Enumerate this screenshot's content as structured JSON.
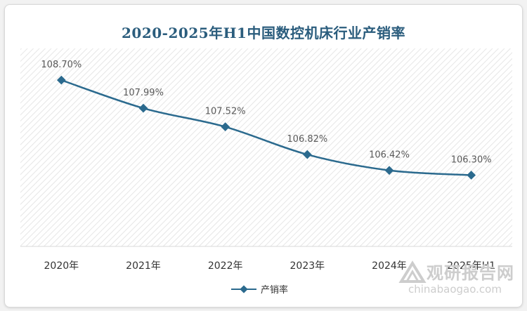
{
  "chart_data": {
    "type": "line",
    "title": "2020-2025年H1中国数控机床行业产销率",
    "categories": [
      "2020年",
      "2021年",
      "2022年",
      "2023年",
      "2024年",
      "2025年H1"
    ],
    "series": [
      {
        "name": "产销率",
        "values": [
          108.7,
          107.99,
          107.52,
          106.82,
          106.42,
          106.3
        ],
        "labels": [
          "108.70%",
          "107.99%",
          "107.52%",
          "106.82%",
          "106.42%",
          "106.30%"
        ]
      }
    ],
    "ylim": [
      104.5,
      109.5
    ],
    "grid": false,
    "legend": "bottom",
    "colors": {
      "line": "#2b6a8e",
      "title": "#2b5d7d"
    }
  },
  "watermark": {
    "name": "观研报告网",
    "url": "chinabaogao.com"
  }
}
